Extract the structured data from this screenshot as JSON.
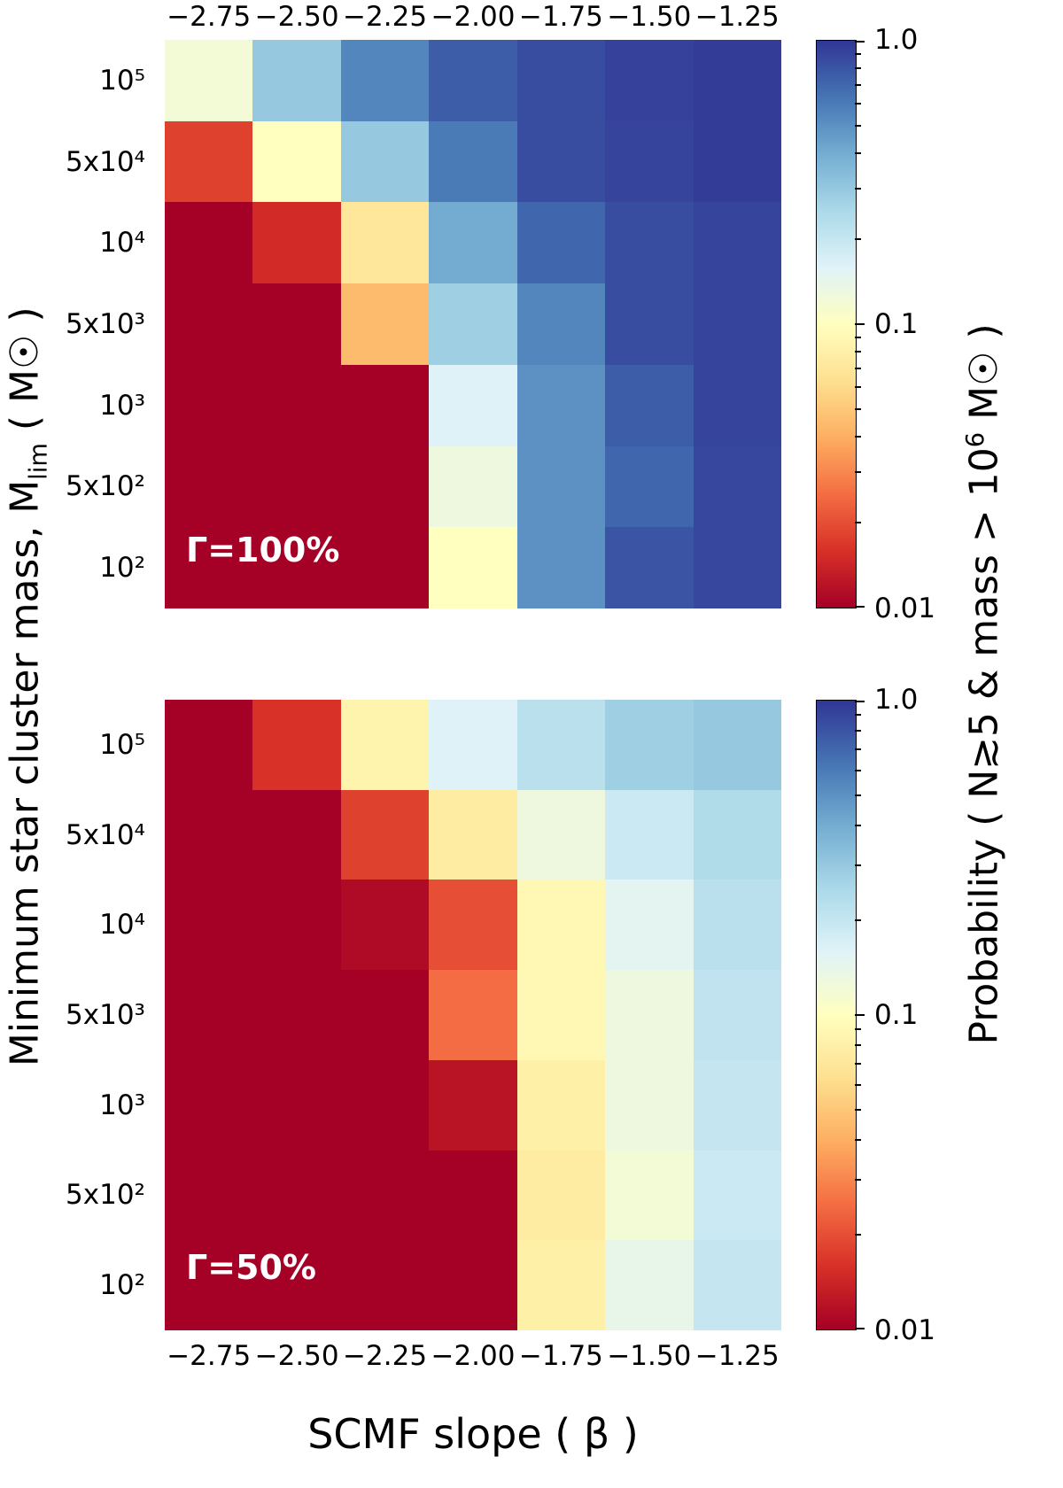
{
  "figure": {
    "x_axis_title": "SCMF slope ( β )",
    "y_axis_title": {
      "pre": "Minimum star cluster mass, M",
      "sub": "lim",
      "post": " ( M☉ )"
    },
    "colorbar_title": {
      "pre": "Probability ( N≳5 & mass > 10",
      "sup": "6",
      "post": " M☉ )"
    },
    "colorbar_tick_labels": [
      "1.0",
      "0.1",
      "0.01"
    ]
  },
  "chart_data": {
    "type": "heatmap",
    "title": "",
    "xlabel": "SCMF slope ( β )",
    "ylabel": "Minimum star cluster mass, M_lim ( M_sun )",
    "colorbar_label": "Probability ( N≳5 & mass > 10^6 M_sun )",
    "x_categories": [
      "−2.75",
      "−2.50",
      "−2.25",
      "−2.00",
      "−1.75",
      "−1.50",
      "−1.25"
    ],
    "y_categories": [
      "10⁵",
      "5x10⁴",
      "10⁴",
      "5x10³",
      "10³",
      "5x10²",
      "10²"
    ],
    "color_scale": "log",
    "vmin": 0.01,
    "vmax": 1.0,
    "colorbar_major_ticks": [
      1.0,
      0.1,
      0.01
    ],
    "colorbar_minor_ticks": [
      0.9,
      0.8,
      0.7,
      0.6,
      0.5,
      0.4,
      0.3,
      0.2,
      0.09,
      0.08,
      0.07,
      0.06,
      0.05,
      0.04,
      0.03,
      0.02
    ],
    "colormap": {
      "name": "RdYlBu",
      "stops": [
        [
          0.0,
          "#a50026"
        ],
        [
          0.1,
          "#d73027"
        ],
        [
          0.2,
          "#f46d43"
        ],
        [
          0.3,
          "#fdae61"
        ],
        [
          0.4,
          "#fee090"
        ],
        [
          0.5,
          "#ffffbf"
        ],
        [
          0.6,
          "#e0f3f8"
        ],
        [
          0.7,
          "#abd9e9"
        ],
        [
          0.8,
          "#74add1"
        ],
        [
          0.9,
          "#4575b4"
        ],
        [
          1.0,
          "#313695"
        ]
      ]
    },
    "panels": [
      {
        "label": "Γ=100%",
        "values": [
          [
            0.12,
            0.3,
            0.55,
            0.75,
            0.85,
            0.92,
            0.95
          ],
          [
            0.018,
            0.1,
            0.3,
            0.6,
            0.85,
            0.9,
            0.95
          ],
          [
            0.01,
            0.015,
            0.07,
            0.4,
            0.7,
            0.85,
            0.9
          ],
          [
            0.01,
            0.01,
            0.045,
            0.28,
            0.55,
            0.85,
            0.9
          ],
          [
            0.01,
            0.01,
            0.01,
            0.16,
            0.5,
            0.75,
            0.9
          ],
          [
            0.01,
            0.01,
            0.01,
            0.13,
            0.5,
            0.7,
            0.88
          ],
          [
            0.01,
            0.01,
            0.01,
            0.1,
            0.5,
            0.8,
            0.88
          ]
        ]
      },
      {
        "label": "Γ=50%",
        "values": [
          [
            0.01,
            0.016,
            0.085,
            0.16,
            0.22,
            0.28,
            0.3
          ],
          [
            0.01,
            0.01,
            0.018,
            0.075,
            0.13,
            0.19,
            0.24
          ],
          [
            0.01,
            0.01,
            0.011,
            0.02,
            0.09,
            0.15,
            0.22
          ],
          [
            0.01,
            0.01,
            0.01,
            0.025,
            0.09,
            0.13,
            0.21
          ],
          [
            0.01,
            0.01,
            0.01,
            0.012,
            0.08,
            0.13,
            0.2
          ],
          [
            0.01,
            0.01,
            0.01,
            0.01,
            0.075,
            0.12,
            0.19
          ],
          [
            0.01,
            0.01,
            0.01,
            0.01,
            0.08,
            0.14,
            0.2
          ]
        ]
      }
    ]
  }
}
